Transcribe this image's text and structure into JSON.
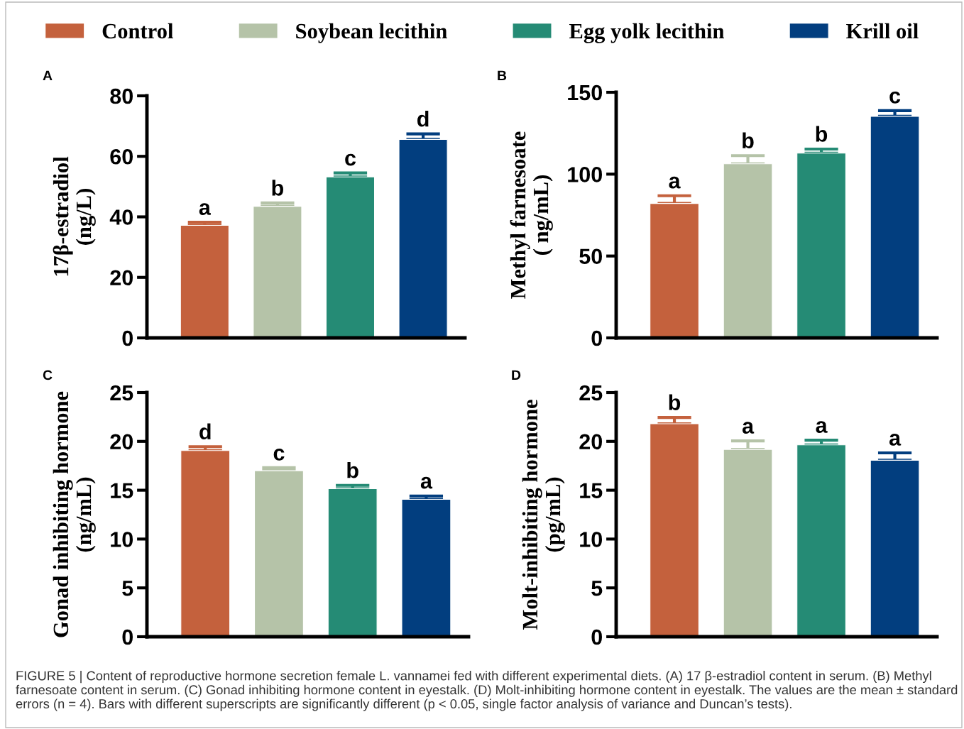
{
  "chart_data": [
    {
      "type": "bar",
      "title": "A",
      "ylabel": "17β-estradiol\n(ng/L)",
      "categories": [
        null
      ],
      "ylim": [
        0,
        80
      ],
      "yticks": [
        0,
        20,
        40,
        60,
        80
      ],
      "grid": false,
      "legend": "top",
      "series": [
        {
          "name": "Control",
          "color": "#c4613d",
          "values": [
            37.2
          ],
          "errors": [
            1.0
          ],
          "value_labels": [
            "a"
          ]
        },
        {
          "name": "Soybean lecithin",
          "color": "#b5c3a8",
          "values": [
            43.5
          ],
          "errors": [
            1.1
          ],
          "value_labels": [
            "b"
          ]
        },
        {
          "name": "Egg yolk lecithin",
          "color": "#258b75",
          "values": [
            53.2
          ],
          "errors": [
            1.3
          ],
          "value_labels": [
            "c"
          ]
        },
        {
          "name": "Krill oil",
          "color": "#023e7f",
          "values": [
            65.6
          ],
          "errors": [
            1.8
          ],
          "value_labels": [
            "d"
          ]
        }
      ]
    },
    {
      "type": "bar",
      "title": "B",
      "ylabel": "Methyl farnesoate\n( ng/mL)",
      "categories": [
        null
      ],
      "ylim": [
        0,
        150
      ],
      "yticks": [
        0,
        50,
        100,
        150
      ],
      "grid": false,
      "series": [
        {
          "color": "#c4613d",
          "values": [
            82.1
          ],
          "errors": [
            4.7
          ],
          "value_labels": [
            "a"
          ]
        },
        {
          "color": "#b5c3a8",
          "values": [
            106.3
          ],
          "errors": [
            5.0
          ],
          "value_labels": [
            "b"
          ]
        },
        {
          "color": "#258b75",
          "values": [
            112.8
          ],
          "errors": [
            2.5
          ],
          "value_labels": [
            "b"
          ]
        },
        {
          "color": "#023e7f",
          "values": [
            135.3
          ],
          "errors": [
            3.5
          ],
          "value_labels": [
            "c"
          ]
        }
      ]
    },
    {
      "type": "bar",
      "title": "C",
      "ylabel": "Gonad inhibiting hormone\n(ng/mL)",
      "categories": [
        null
      ],
      "ylim": [
        0,
        25
      ],
      "yticks": [
        0,
        5,
        10,
        15,
        20,
        25
      ],
      "grid": false,
      "series": [
        {
          "color": "#c4613d",
          "values": [
            19.06
          ],
          "errors": [
            0.4
          ],
          "value_labels": [
            "d"
          ]
        },
        {
          "color": "#b5c3a8",
          "values": [
            17.0
          ],
          "errors": [
            0.3
          ],
          "value_labels": [
            "c"
          ]
        },
        {
          "color": "#258b75",
          "values": [
            15.15
          ],
          "errors": [
            0.35
          ],
          "value_labels": [
            "b"
          ]
        },
        {
          "color": "#023e7f",
          "values": [
            14.06
          ],
          "errors": [
            0.35
          ],
          "value_labels": [
            "a"
          ]
        }
      ]
    },
    {
      "type": "bar",
      "title": "D",
      "ylabel": "Molt-inhibiting hormone\n(pg/mL)",
      "categories": [
        null
      ],
      "ylim": [
        0,
        25
      ],
      "yticks": [
        0,
        5,
        10,
        15,
        20,
        25
      ],
      "grid": false,
      "series": [
        {
          "color": "#c4613d",
          "values": [
            21.8
          ],
          "errors": [
            0.65
          ],
          "value_labels": [
            "b"
          ]
        },
        {
          "color": "#b5c3a8",
          "values": [
            19.18
          ],
          "errors": [
            0.87
          ],
          "value_labels": [
            "a"
          ]
        },
        {
          "color": "#258b75",
          "values": [
            19.64
          ],
          "errors": [
            0.48
          ],
          "value_labels": [
            "a"
          ]
        },
        {
          "color": "#023e7f",
          "values": [
            18.07
          ],
          "errors": [
            0.75
          ],
          "value_labels": [
            "a"
          ]
        }
      ],
      "annotations": [
        "FIGURE 5 | Content of reproductive hormone secretion female L. vannamei fed with different experimental diets. (A) 17 β-estradiol content in serum. (B) Methyl farnesoate content in serum. (C) Gonad inhibiting hormone content in eyestalk. (D) Molt-inhibiting hormone content in eyestalk. The values are the mean ± standard errors (n = 4). Bars with different superscripts are significantly different (p < 0.05, single factor analysis of variance and Duncan’s tests)."
      ]
    }
  ]
}
